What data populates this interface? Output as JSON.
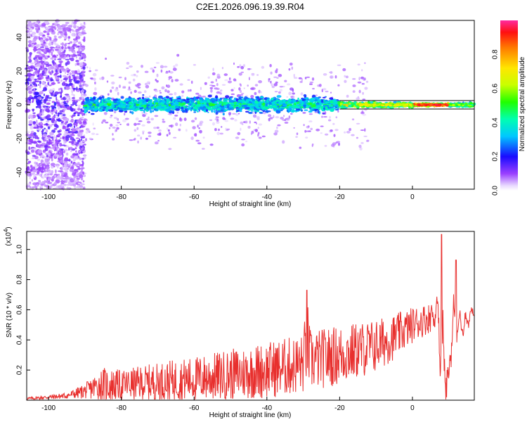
{
  "title": "C2E1.2026.096.19.39.R04",
  "chart_data": [
    {
      "type": "heatmap",
      "xlabel": "Height of straight line (km)",
      "ylabel": "Frequency (Hz)",
      "xlim": [
        -106,
        17
      ],
      "ylim": [
        -50,
        50
      ],
      "xticks": [
        -100,
        -80,
        -60,
        -40,
        -20,
        0
      ],
      "yticks": [
        -40,
        -20,
        0,
        20,
        40
      ],
      "ridge": {
        "description": "Spectral energy concentrated near 0 Hz; wide noisy band below -90 km, narrowing to a tight high-amplitude line near 0 to 10 km",
        "center_hz": 0,
        "segments": [
          {
            "x_from": -106,
            "x_to": -90,
            "halfwidth_hz": 50,
            "amplitude": 0.15
          },
          {
            "x_from": -90,
            "x_to": -20,
            "halfwidth_hz": 6,
            "amplitude": 0.45
          },
          {
            "x_from": -20,
            "x_to": 0,
            "halfwidth_hz": 2,
            "amplitude": 0.7
          },
          {
            "x_from": 0,
            "x_to": 10,
            "halfwidth_hz": 1,
            "amplitude": 0.95
          },
          {
            "x_from": 10,
            "x_to": 17,
            "halfwidth_hz": 1.5,
            "amplitude": 0.6
          }
        ]
      },
      "colorbar": {
        "label": "Normalized spectral amplitude",
        "range": [
          0,
          1
        ],
        "ticks": [
          "0.0",
          "0.2",
          "0.4",
          "0.6",
          "0.8"
        ]
      }
    },
    {
      "type": "line",
      "xlabel": "Height of straight line (km)",
      "ylabel": "SNR (10 * v/v)",
      "scale_label": "(x10",
      "scale_exp": "4",
      "scale_close": ")",
      "xlim": [
        -106,
        17
      ],
      "ylim": [
        0,
        1.12
      ],
      "xticks": [
        -100,
        -80,
        -60,
        -40,
        -20,
        0
      ],
      "yticks": [
        0.2,
        0.4,
        0.6,
        0.8,
        1.0
      ],
      "ytick_labels": [
        "0.2",
        "0.4",
        "0.6",
        "0.8",
        "1.0"
      ],
      "color": "#e8302e",
      "envelope": {
        "x": [
          -106,
          -100,
          -95,
          -90,
          -86,
          -85,
          -80,
          -70,
          -60,
          -50,
          -40,
          -30,
          -29,
          -28,
          -20,
          -10,
          -5,
          0,
          5,
          7,
          8,
          9,
          10,
          11,
          12,
          14,
          17
        ],
        "base": [
          0.01,
          0.02,
          0.03,
          0.06,
          0.1,
          0.1,
          0.1,
          0.12,
          0.14,
          0.17,
          0.2,
          0.24,
          0.4,
          0.26,
          0.3,
          0.36,
          0.42,
          0.5,
          0.55,
          0.58,
          0.35,
          0.2,
          0.12,
          0.55,
          0.5,
          0.5,
          0.6
        ],
        "amplitude": [
          0.01,
          0.015,
          0.02,
          0.05,
          0.1,
          0.12,
          0.1,
          0.13,
          0.15,
          0.17,
          0.19,
          0.2,
          0.3,
          0.2,
          0.2,
          0.18,
          0.15,
          0.12,
          0.1,
          0.15,
          0.4,
          0.3,
          0.1,
          0.25,
          0.15,
          0.1,
          0.05
        ]
      },
      "notable_peaks": [
        {
          "x": -29,
          "y": 0.73
        },
        {
          "x": 8,
          "y": 1.1
        },
        {
          "x": 12,
          "y": 0.93
        }
      ]
    }
  ]
}
